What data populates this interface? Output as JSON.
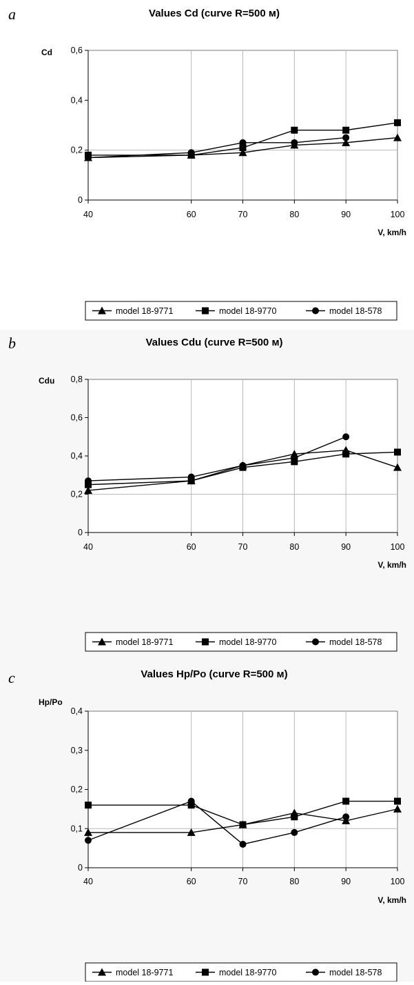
{
  "panel_labels": [
    "a",
    "b",
    "c"
  ],
  "chart_data": [
    {
      "type": "line",
      "title": "Values Cd (curve R=500 м)",
      "ylabel": "Cd",
      "xlabel": "V, km/h",
      "x": [
        40,
        60,
        70,
        80,
        90,
        100
      ],
      "ylim": [
        0,
        0.6
      ],
      "yticks": [
        0,
        0.2,
        0.4,
        0.6
      ],
      "ytick_labels": [
        "0",
        "0,2",
        "0,4",
        "0,6"
      ],
      "xticks": [
        40,
        60,
        70,
        80,
        90,
        100
      ],
      "xtick_labels": [
        "40",
        "60",
        "70",
        "80",
        "90",
        "100"
      ],
      "grid": "vertical lines at x ticks, horizontal at 0,2",
      "legend_position": "bottom",
      "series": [
        {
          "name": "model 18-9771",
          "marker": "triangle",
          "values": [
            0.17,
            0.18,
            0.19,
            0.22,
            0.23,
            0.25
          ]
        },
        {
          "name": "model 18-9770",
          "marker": "square",
          "values": [
            0.18,
            0.18,
            0.21,
            0.28,
            0.28,
            0.31
          ]
        },
        {
          "name": "model 18-578",
          "marker": "circle",
          "values": [
            0.17,
            0.19,
            0.23,
            0.23,
            0.25,
            null
          ]
        }
      ]
    },
    {
      "type": "line",
      "title": "Values Cdu (curve R=500 м)",
      "ylabel": "Cdu",
      "xlabel": "V, km/h",
      "x": [
        40,
        60,
        70,
        80,
        90,
        100
      ],
      "ylim": [
        0,
        0.8
      ],
      "yticks": [
        0,
        0.2,
        0.4,
        0.6,
        0.8
      ],
      "ytick_labels": [
        "0",
        "0,2",
        "0,4",
        "0,6",
        "0,8"
      ],
      "xticks": [
        40,
        60,
        70,
        80,
        90,
        100
      ],
      "xtick_labels": [
        "40",
        "60",
        "70",
        "80",
        "90",
        "100"
      ],
      "grid": "vertical lines at x ticks, horizontal at 0,2",
      "legend_position": "bottom",
      "series": [
        {
          "name": "model 18-9771",
          "marker": "triangle",
          "values": [
            0.22,
            0.27,
            0.35,
            0.41,
            0.43,
            0.34
          ]
        },
        {
          "name": "model 18-9770",
          "marker": "square",
          "values": [
            0.25,
            0.27,
            0.34,
            0.37,
            0.41,
            0.42
          ]
        },
        {
          "name": "model 18-578",
          "marker": "circle",
          "values": [
            0.27,
            0.29,
            0.35,
            0.39,
            0.5,
            null
          ]
        }
      ]
    },
    {
      "type": "line",
      "title": "Values Hp/Po (curve R=500 м)",
      "ylabel": "Hp/Po",
      "xlabel": "V, km/h",
      "x": [
        40,
        60,
        70,
        80,
        90,
        100
      ],
      "ylim": [
        0,
        0.4
      ],
      "yticks": [
        0,
        0.1,
        0.2,
        0.3,
        0.4
      ],
      "ytick_labels": [
        "0",
        "0,1",
        "0,2",
        "0,3",
        "0,4"
      ],
      "xticks": [
        40,
        60,
        70,
        80,
        90,
        100
      ],
      "xtick_labels": [
        "40",
        "60",
        "70",
        "80",
        "90",
        "100"
      ],
      "grid": "vertical lines at x ticks, horizontal at 0,1",
      "legend_position": "bottom",
      "series": [
        {
          "name": "model 18-9771",
          "marker": "triangle",
          "values": [
            0.09,
            0.09,
            0.11,
            0.14,
            0.12,
            0.15
          ]
        },
        {
          "name": "model 18-9770",
          "marker": "square",
          "values": [
            0.16,
            0.16,
            0.11,
            0.13,
            0.17,
            0.17
          ]
        },
        {
          "name": "model 18-578",
          "marker": "circle",
          "values": [
            0.07,
            0.17,
            0.06,
            0.09,
            0.13,
            null
          ]
        }
      ]
    }
  ]
}
